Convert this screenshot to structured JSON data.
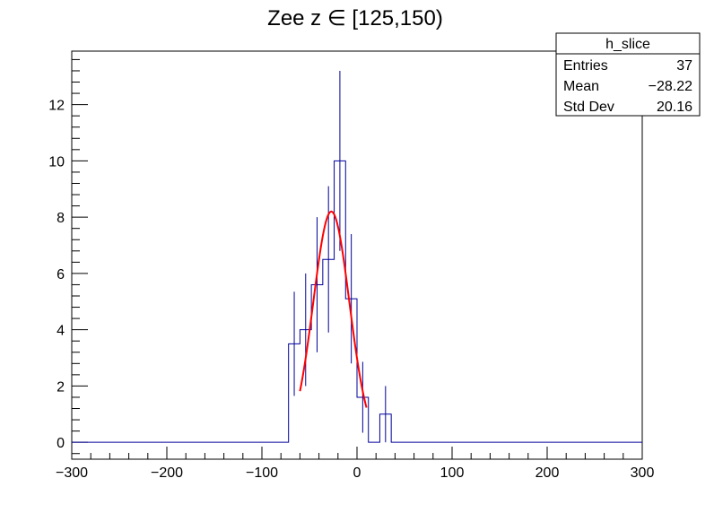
{
  "chart_data": {
    "type": "bar",
    "title": "Zee z ∈ [125,150)",
    "xlim": [
      -300,
      300
    ],
    "ylim": [
      -0.6,
      13.9
    ],
    "xticks": [
      -300,
      -200,
      -100,
      0,
      100,
      200,
      300
    ],
    "xtick_labels": [
      "−300",
      "−200",
      "−100",
      "0",
      "100",
      "200",
      "300"
    ],
    "yticks": [
      0,
      2,
      4,
      6,
      8,
      10,
      12
    ],
    "ytick_labels": [
      "0",
      "2",
      "4",
      "6",
      "8",
      "10",
      "12"
    ],
    "hist_color": "#000099",
    "fit_color": "#ff0000",
    "histogram": {
      "edges": [
        -300,
        -72,
        -60,
        -48,
        -36,
        -24,
        -12,
        0,
        12,
        24,
        36,
        300
      ],
      "values": [
        0,
        3.5,
        4.0,
        5.6,
        6.5,
        10.0,
        5.1,
        1.6,
        0,
        1.0,
        0
      ],
      "errors": [
        0,
        1.85,
        2.0,
        2.4,
        2.6,
        3.2,
        2.3,
        1.26,
        0,
        1.0,
        0
      ]
    },
    "fit": {
      "type": "gaussian",
      "amplitude": 8.2,
      "mean": -27,
      "sigma": 19,
      "range": [
        -60,
        10
      ]
    },
    "stats": {
      "name": "h_slice",
      "rows": [
        {
          "label": "Entries",
          "value": "37"
        },
        {
          "label": "Mean",
          "value": "−28.22"
        },
        {
          "label": "Std Dev",
          "value": "20.16"
        }
      ]
    }
  }
}
